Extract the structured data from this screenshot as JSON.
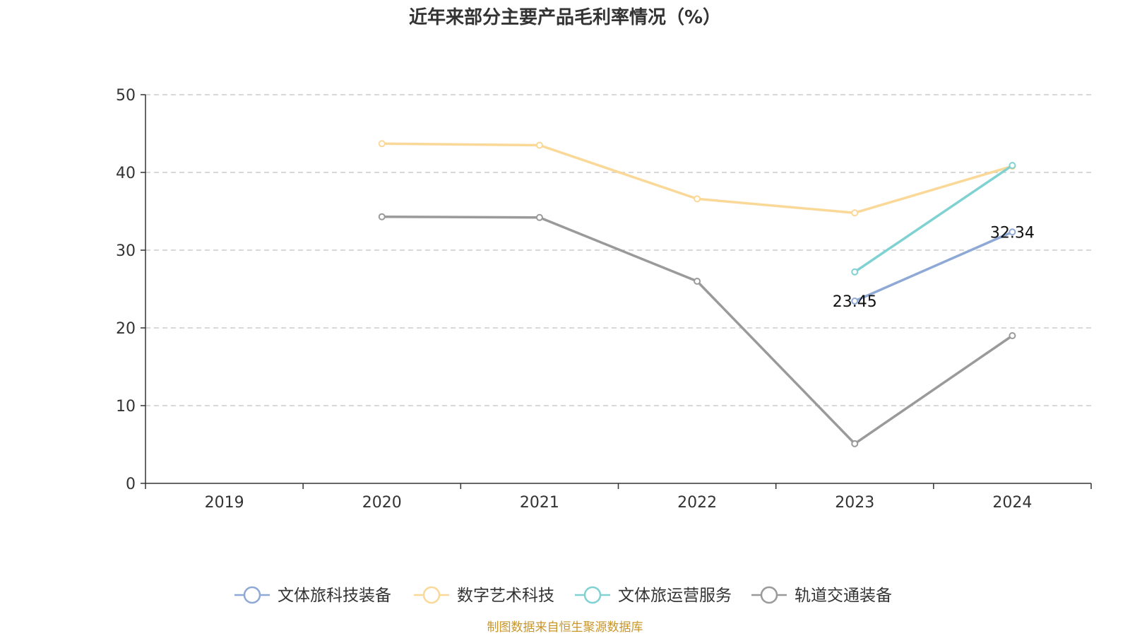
{
  "chart_data": {
    "type": "line",
    "title": "近年来部分主要产品毛利率情况（%）",
    "categories": [
      "2019",
      "2020",
      "2021",
      "2022",
      "2023",
      "2024"
    ],
    "ylim": [
      0,
      50
    ],
    "yticks": [
      "0",
      "10",
      "20",
      "30",
      "40",
      "50"
    ],
    "grid": true,
    "legend_position": "bottom",
    "series": [
      {
        "name": "文体旅科技装备",
        "color": "#8fa9d6",
        "values": [
          null,
          null,
          null,
          null,
          23.45,
          32.34
        ],
        "labels": [
          null,
          null,
          null,
          null,
          "23.45",
          "32.34"
        ]
      },
      {
        "name": "数字艺术科技",
        "color": "#fad897",
        "values": [
          null,
          43.7,
          43.5,
          36.6,
          34.8,
          40.8
        ],
        "labels": [
          null,
          null,
          null,
          null,
          null,
          null
        ]
      },
      {
        "name": "文体旅运营服务",
        "color": "#80d2d2",
        "values": [
          null,
          null,
          null,
          null,
          27.2,
          40.9
        ],
        "labels": [
          null,
          null,
          null,
          null,
          null,
          null
        ]
      },
      {
        "name": "轨道交通装备",
        "color": "#9a9a9a",
        "values": [
          null,
          34.3,
          34.2,
          26.0,
          5.1,
          19.0
        ],
        "labels": [
          null,
          null,
          null,
          null,
          null,
          null
        ]
      }
    ]
  },
  "source": "制图数据来自恒生聚源数据库"
}
